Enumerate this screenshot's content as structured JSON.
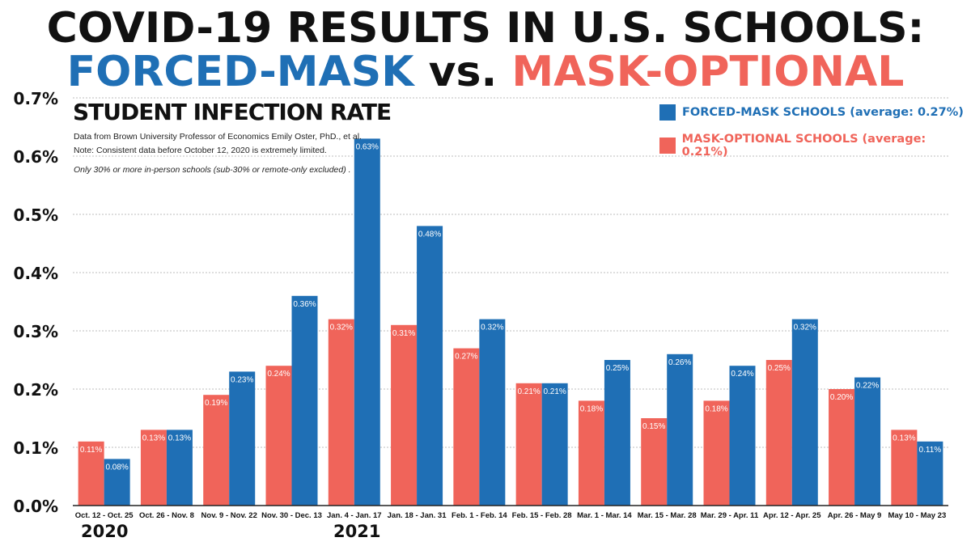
{
  "title": {
    "line1": "COVID-19 RESULTS IN U.S. SCHOOLS:",
    "line2_forced": "FORCED-MASK",
    "line2_vs": "vs.",
    "line2_optional": "MASK-OPTIONAL"
  },
  "notes": {
    "source": "Data from Brown University Professor of Economics Emily Oster, PhD., et al.",
    "consistency": "Note: Consistent data before October 12, 2020 is extremely limited.",
    "filter": "Only 30% or more in-person schools (sub-30% or remote-only excluded) ."
  },
  "years": {
    "first": "2020",
    "second": "2021"
  },
  "colors": {
    "forced": "#1f6fb5",
    "optional": "#f0645a",
    "grid": "#bdbdbd",
    "text": "#111111"
  },
  "chart_data": {
    "type": "bar",
    "title": "STUDENT INFECTION RATE",
    "xlabel": "",
    "ylabel": "",
    "ylim": [
      0,
      0.7
    ],
    "yticks": [
      "0.0%",
      "0.1%",
      "0.2%",
      "0.3%",
      "0.4%",
      "0.5%",
      "0.6%",
      "0.7%"
    ],
    "categories": [
      "Oct. 12 - Oct. 25",
      "Oct. 26 - Nov. 8",
      "Nov. 9 - Nov. 22",
      "Nov. 30 - Dec. 13",
      "Jan. 4 - Jan. 17",
      "Jan. 18 - Jan. 31",
      "Feb. 1 - Feb. 14",
      "Feb. 15 - Feb. 28",
      "Mar. 1 - Mar. 14",
      "Mar. 15 - Mar. 28",
      "Mar. 29 - Apr. 11",
      "Apr. 12 - Apr. 25",
      "Apr. 26 - May 9",
      "May 10 - May 23"
    ],
    "series": [
      {
        "name": "MASK-OPTIONAL SCHOOLS (average: 0.21%)",
        "values": [
          0.11,
          0.13,
          0.19,
          0.24,
          0.32,
          0.31,
          0.27,
          0.21,
          0.18,
          0.15,
          0.18,
          0.25,
          0.2,
          0.13
        ],
        "labels": [
          "0.11%",
          "0.13%",
          "0.19%",
          "0.24%",
          "0.32%",
          "0.31%",
          "0.27%",
          "0.21%",
          "0.18%",
          "0.15%",
          "0.18%",
          "0.25%",
          "0.20%",
          "0.13%"
        ]
      },
      {
        "name": "FORCED-MASK SCHOOLS (average: 0.27%)",
        "values": [
          0.08,
          0.13,
          0.23,
          0.36,
          0.63,
          0.48,
          0.32,
          0.21,
          0.25,
          0.26,
          0.24,
          0.32,
          0.22,
          0.11
        ],
        "labels": [
          "0.08%",
          "0.13%",
          "0.23%",
          "0.36%",
          "0.63%",
          "0.48%",
          "0.32%",
          "0.21%",
          "0.25%",
          "0.26%",
          "0.24%",
          "0.32%",
          "0.22%",
          "0.11%"
        ]
      }
    ]
  }
}
